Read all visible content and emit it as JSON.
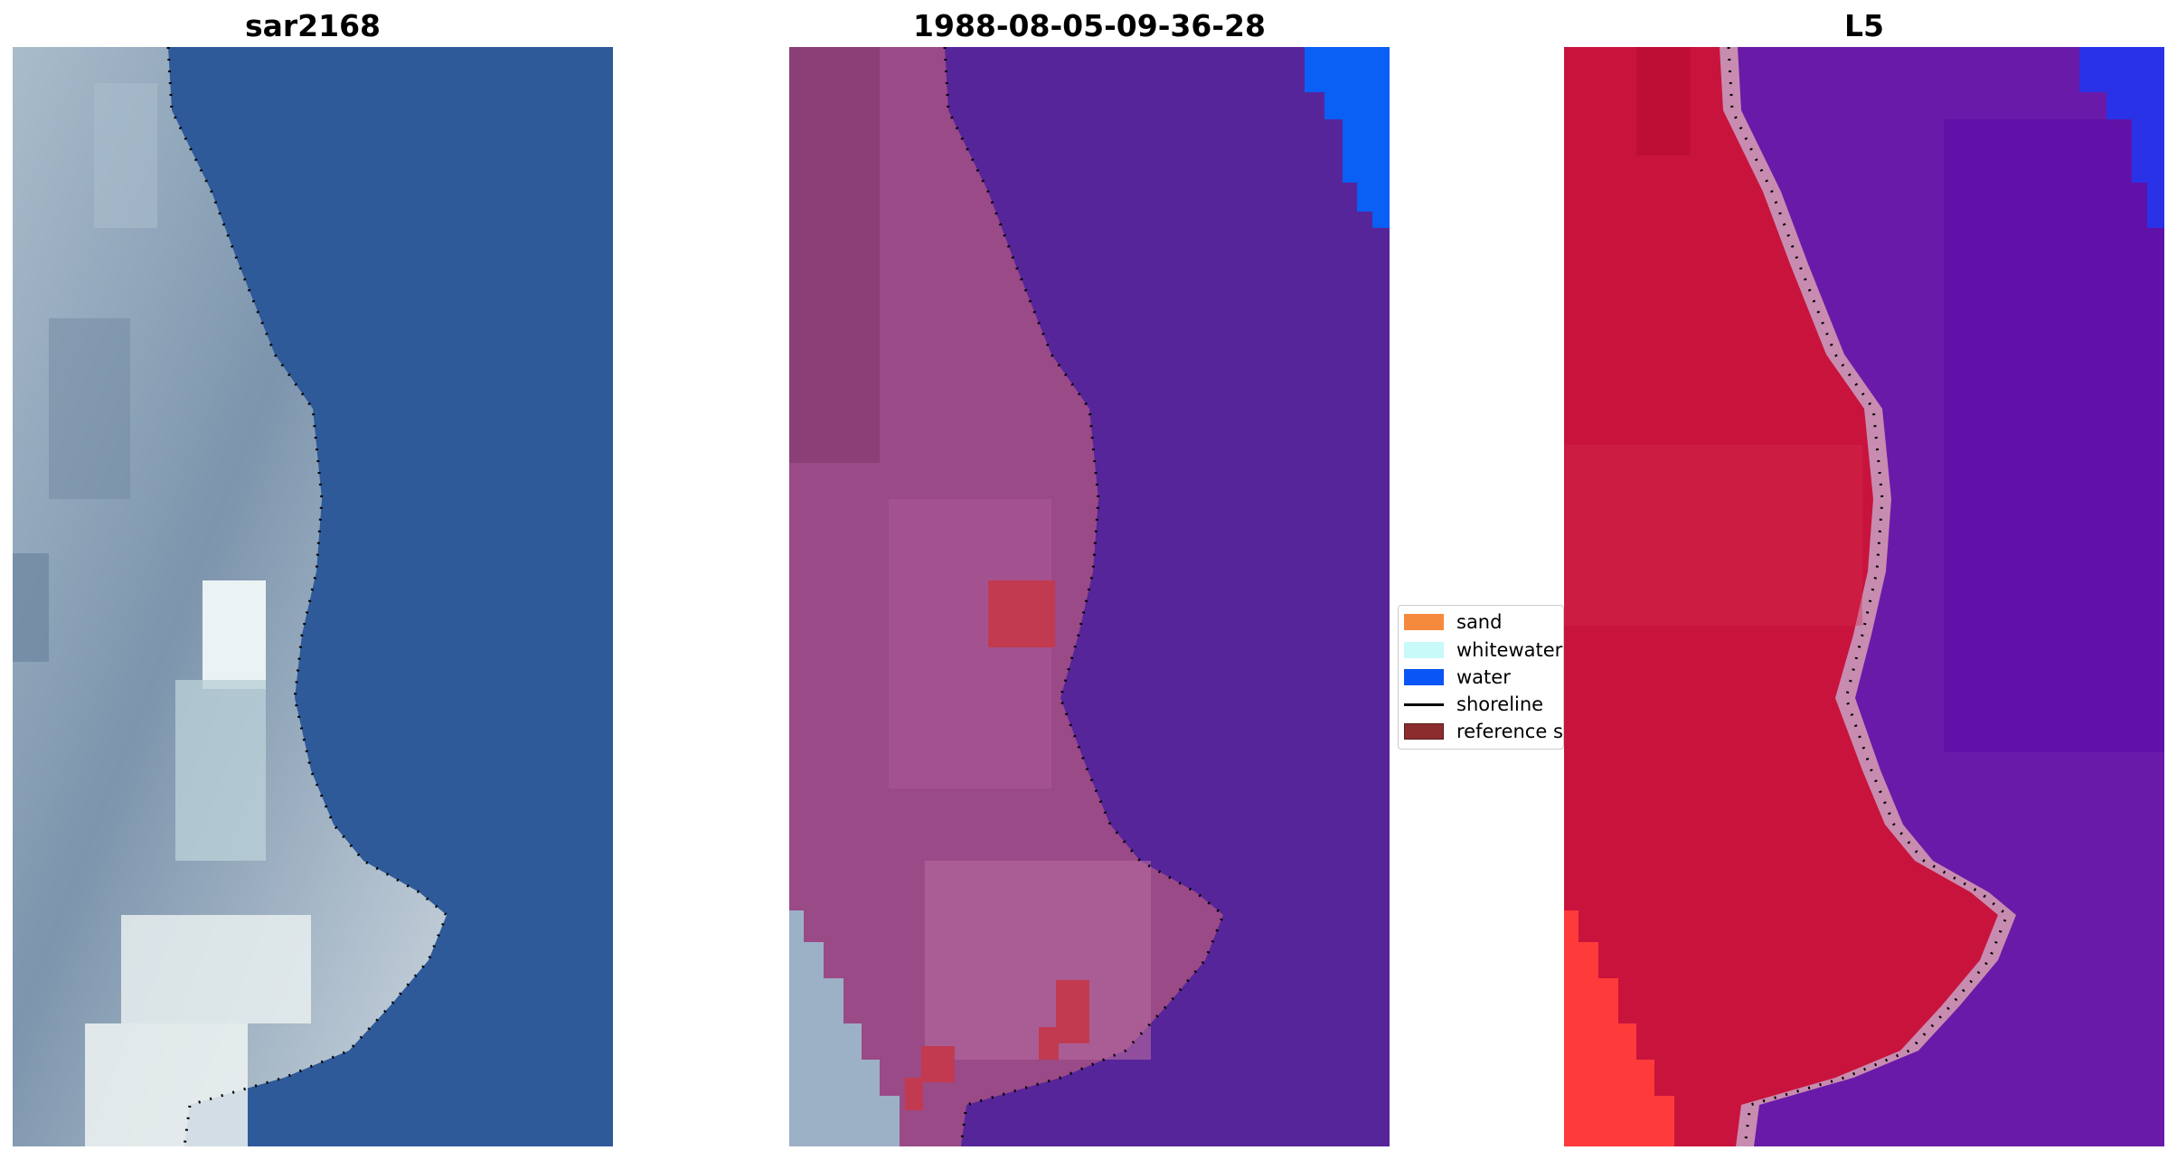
{
  "panels": [
    {
      "title": "sar2168"
    },
    {
      "title": "1988-08-05-09-36-28"
    },
    {
      "title": "L5"
    }
  ],
  "legend": {
    "items": [
      {
        "label": "sand",
        "color": "#f58a3c"
      },
      {
        "label": "whitewater",
        "color": "#c8fafa"
      },
      {
        "label": "water",
        "color": "#0a55f5"
      },
      {
        "label": "shoreline",
        "color": "#000000"
      },
      {
        "label": "reference s",
        "color": "#8b2c2f"
      }
    ]
  },
  "colors": {
    "rgb_land": "#8ea3b6",
    "rgb_water": "#2e5898",
    "class_land": "#9a4a86",
    "class_water": "#57259a",
    "class_water_blue": "#0a5ff5",
    "mndwi_land": "#c8143c",
    "mndwi_water": "#6a1aa8",
    "mndwi_edge": "#c88cb0"
  }
}
